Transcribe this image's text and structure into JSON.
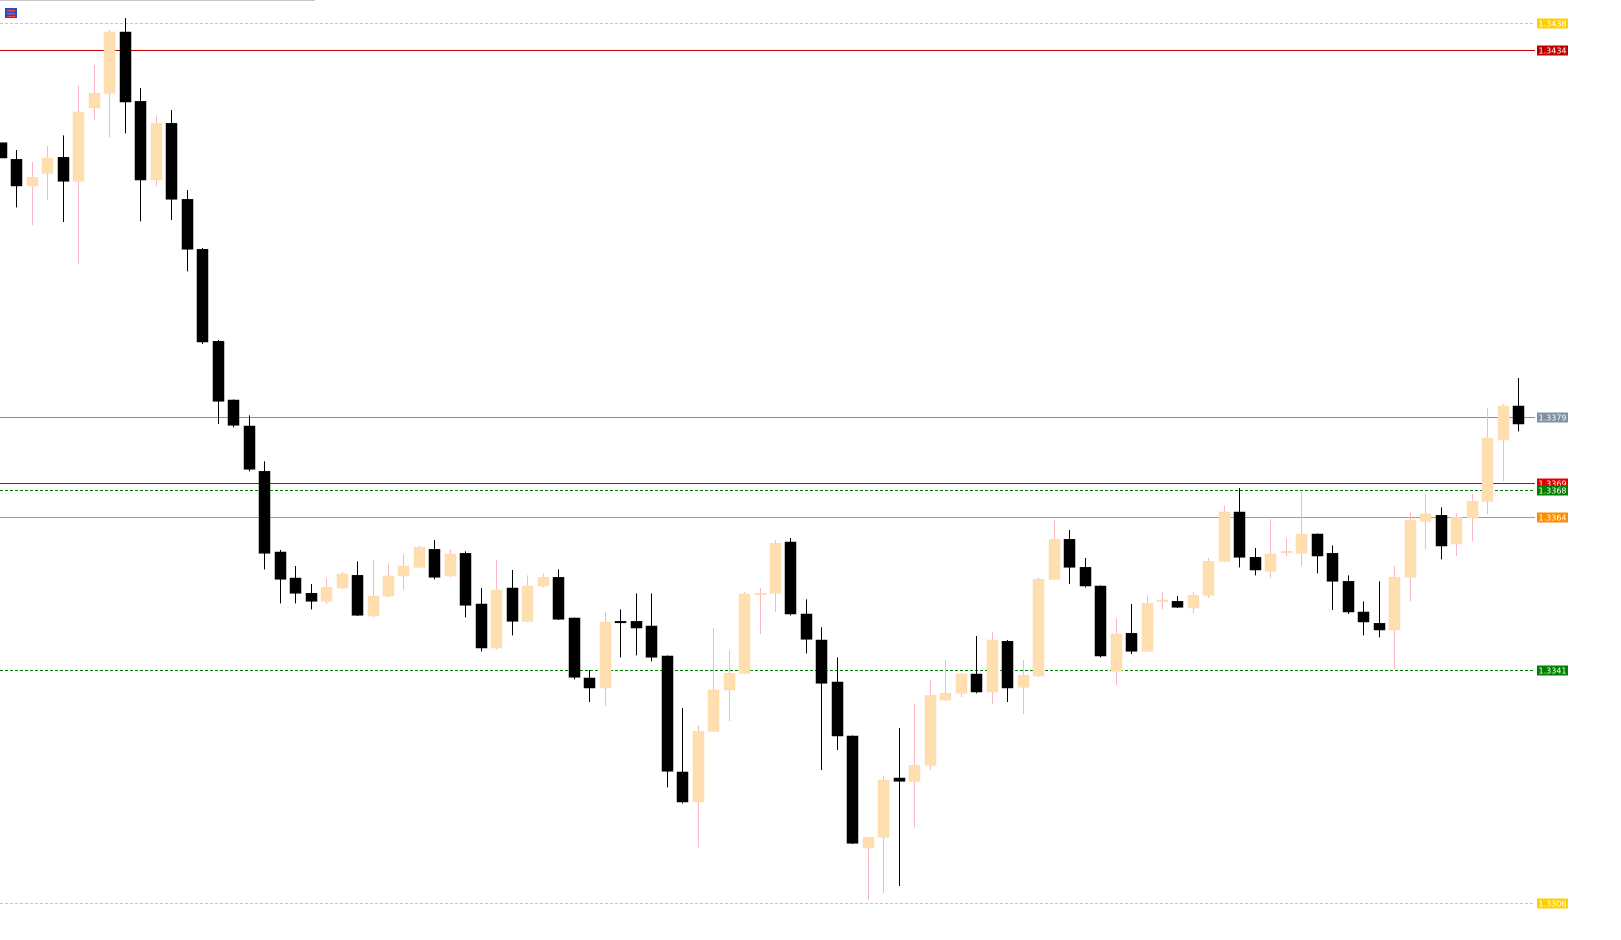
{
  "chart_data": {
    "type": "candlestick",
    "ylim": [
      1.33053,
      1.34415
    ],
    "up_color": "#ffdeb0",
    "up_wick_color": "#f7b8c4",
    "down_color": "#000000",
    "down_wick_color": "#000000",
    "open": [
      1.34201,
      1.34176,
      1.34136,
      1.34155,
      1.34179,
      1.34143,
      1.34253,
      1.34275,
      1.34367,
      1.34263,
      1.34145,
      1.3423,
      1.34116,
      1.34041,
      1.33903,
      1.33815,
      1.33776,
      1.33708,
      1.33587,
      1.33548,
      1.33525,
      1.33513,
      1.33533,
      1.33552,
      1.33491,
      1.33521,
      1.33551,
      1.33564,
      1.33591,
      1.33551,
      1.33585,
      1.33509,
      1.33443,
      1.33533,
      1.33483,
      1.33536,
      1.33549,
      1.33488,
      1.33398,
      1.33383,
      1.33483,
      1.33483,
      1.33476,
      1.33431,
      1.33257,
      1.33212,
      1.33318,
      1.3338,
      1.33405,
      1.33524,
      1.33525,
      1.33602,
      1.33494,
      1.33455,
      1.33392,
      1.33311,
      1.33143,
      1.33159,
      1.33248,
      1.33243,
      1.33267,
      1.33365,
      1.33375,
      1.33404,
      1.33377,
      1.33453,
      1.33384,
      1.33401,
      1.33546,
      1.33606,
      1.33564,
      1.33536,
      1.33408,
      1.33465,
      1.33438,
      1.33513,
      1.33513,
      1.33503,
      1.33522,
      1.33573,
      1.33647,
      1.33579,
      1.33558,
      1.33587,
      1.33585,
      1.33614,
      1.33585,
      1.33543,
      1.33497,
      1.3348,
      1.3347,
      1.33549,
      1.33633,
      1.33642,
      1.33599,
      1.33638,
      1.33663,
      1.33755,
      1.33806
    ],
    "high": [
      1.34201,
      1.3419,
      1.34172,
      1.34196,
      1.34212,
      1.34287,
      1.34317,
      1.3437,
      1.34388,
      1.34283,
      1.34242,
      1.3425,
      1.3413,
      1.34043,
      1.33905,
      1.33816,
      1.33792,
      1.33723,
      1.3359,
      1.33566,
      1.33539,
      1.33548,
      1.33557,
      1.33573,
      1.33575,
      1.3357,
      1.33584,
      1.33597,
      1.33605,
      1.33591,
      1.33588,
      1.33533,
      1.33575,
      1.3356,
      1.33552,
      1.33555,
      1.33561,
      1.33489,
      1.3341,
      1.33497,
      1.33501,
      1.33525,
      1.33525,
      1.33432,
      1.33353,
      1.33327,
      1.33473,
      1.3344,
      1.33527,
      1.33533,
      1.33605,
      1.33608,
      1.33516,
      1.33474,
      1.33429,
      1.33312,
      1.33159,
      1.33251,
      1.33323,
      1.3336,
      1.33395,
      1.33425,
      1.33405,
      1.33461,
      1.33467,
      1.33455,
      1.33425,
      1.33549,
      1.33635,
      1.3362,
      1.33578,
      1.33537,
      1.33488,
      1.33509,
      1.33522,
      1.33527,
      1.33521,
      1.33527,
      1.33578,
      1.33657,
      1.33683,
      1.33593,
      1.33636,
      1.33608,
      1.33678,
      1.33615,
      1.33597,
      1.33552,
      1.33513,
      1.33543,
      1.33566,
      1.33647,
      1.33675,
      1.33654,
      1.33645,
      1.33674,
      1.33803,
      1.33809,
      1.33848
    ],
    "low": [
      1.34178,
      1.34104,
      1.34077,
      1.34115,
      1.34082,
      1.34019,
      1.34235,
      1.34209,
      1.34215,
      1.34083,
      1.34136,
      1.34085,
      1.34008,
      1.33899,
      1.33779,
      1.33774,
      1.33708,
      1.33561,
      1.3351,
      1.3351,
      1.33501,
      1.33509,
      1.33531,
      1.33491,
      1.33489,
      1.33519,
      1.3353,
      1.33563,
      1.33546,
      1.33549,
      1.33489,
      1.33438,
      1.33441,
      1.33462,
      1.33482,
      1.33534,
      1.33485,
      1.33396,
      1.33362,
      1.33356,
      1.33429,
      1.33432,
      1.33423,
      1.33234,
      1.3321,
      1.33144,
      1.33317,
      1.33333,
      1.33404,
      1.33464,
      1.33497,
      1.33492,
      1.33435,
      1.3326,
      1.3329,
      1.33149,
      1.33065,
      1.33075,
      1.33086,
      1.33174,
      1.3326,
      1.33363,
      1.33369,
      1.33375,
      1.33359,
      1.33362,
      1.33344,
      1.33399,
      1.33545,
      1.33539,
      1.33534,
      1.33429,
      1.33387,
      1.33434,
      1.33437,
      1.33501,
      1.33503,
      1.33495,
      1.33518,
      1.33572,
      1.33564,
      1.33552,
      1.33548,
      1.33581,
      1.33566,
      1.33555,
      1.335,
      1.33494,
      1.33462,
      1.33459,
      1.33411,
      1.33513,
      1.33591,
      1.33576,
      1.33581,
      1.33603,
      1.33644,
      1.33693,
      1.33768
    ],
    "close": [
      1.34178,
      1.34136,
      1.34149,
      1.34178,
      1.34143,
      1.34247,
      1.34275,
      1.34367,
      1.34262,
      1.34145,
      1.3423,
      1.34116,
      1.34041,
      1.33902,
      1.33813,
      1.33777,
      1.33711,
      1.33585,
      1.33546,
      1.33525,
      1.33513,
      1.33534,
      1.33554,
      1.33492,
      1.33521,
      1.33551,
      1.33566,
      1.33594,
      1.33549,
      1.33584,
      1.33507,
      1.33443,
      1.3353,
      1.33483,
      1.33536,
      1.33549,
      1.33486,
      1.33399,
      1.33383,
      1.33482,
      1.33482,
      1.33473,
      1.33429,
      1.33258,
      1.33212,
      1.33318,
      1.3338,
      1.33405,
      1.33524,
      1.33525,
      1.336,
      1.33494,
      1.33456,
      1.3339,
      1.33311,
      1.3315,
      1.33159,
      1.33245,
      1.33243,
      1.33267,
      1.33372,
      1.33375,
      1.33404,
      1.33377,
      1.33455,
      1.33383,
      1.33402,
      1.33546,
      1.33606,
      1.33564,
      1.33536,
      1.33431,
      1.33464,
      1.33438,
      1.3351,
      1.33515,
      1.33504,
      1.33522,
      1.33573,
      1.33647,
      1.33579,
      1.3356,
      1.33584,
      1.33588,
      1.33614,
      1.33581,
      1.33543,
      1.33497,
      1.33482,
      1.3347,
      1.33549,
      1.33635,
      1.33644,
      1.33596,
      1.33639,
      1.33663,
      1.33758,
      1.33806,
      1.33779
    ],
    "levels": [
      {
        "value": 1.3438,
        "color": "#ffd000",
        "style": "dashed"
      },
      {
        "value": 1.3434,
        "color": "#c00000",
        "style": "solid"
      },
      {
        "value": 1.3379,
        "color": "#8090a0",
        "style": "solid"
      },
      {
        "value": 1.3369,
        "color": "#e00000",
        "style": "solid"
      },
      {
        "value": 1.3368,
        "color": "#008000",
        "style": "dashed"
      },
      {
        "value": 1.3364,
        "color": "#ff8c00",
        "style": "solid"
      },
      {
        "value": 1.3341,
        "color": "#008000",
        "style": "dashed"
      },
      {
        "value": 1.3306,
        "color": "#ffd000",
        "style": "dashed"
      }
    ]
  }
}
